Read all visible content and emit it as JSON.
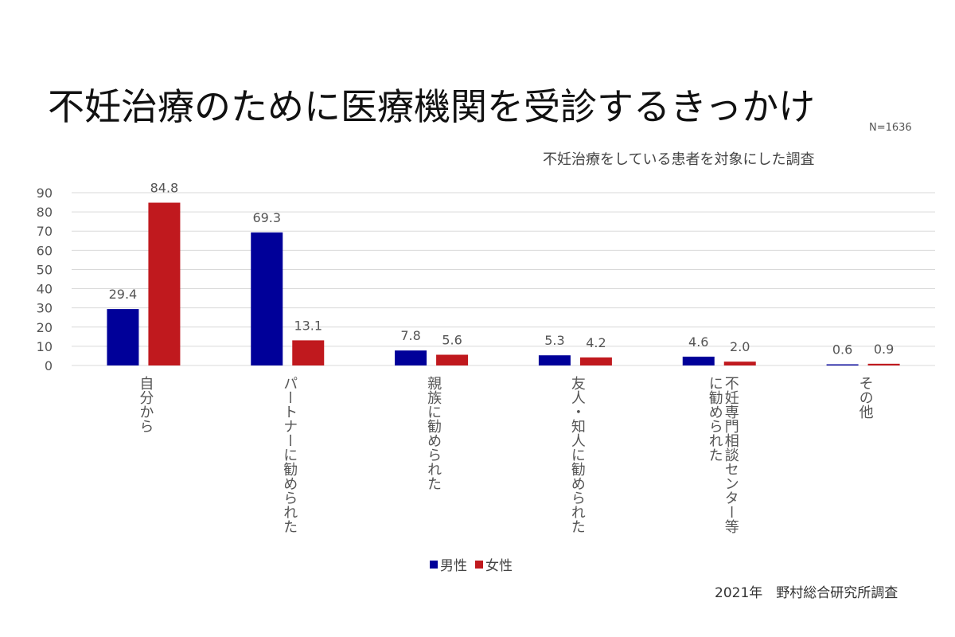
{
  "title": "不妊治療のために医療機関を受診するきっかけ",
  "sample_note": "N=1636",
  "subtitle": "不妊治療をしている患者を対象にした調査",
  "source": "2021年　野村総合研究所調査",
  "colors": {
    "male": "#000099",
    "female": "#C0191E",
    "grid": "#d9d9d9",
    "text": "#555555"
  },
  "chart_data": {
    "type": "bar",
    "categories": [
      "自分から",
      "パートナーに勧められた",
      "親族に勧められた",
      "友人・知人に勧められた",
      "不妊専門相談センター等\nに勧められた",
      "その他"
    ],
    "series": [
      {
        "name": "男性",
        "values": [
          29.4,
          69.3,
          7.8,
          5.3,
          4.6,
          0.6
        ]
      },
      {
        "name": "女性",
        "values": [
          84.8,
          13.1,
          5.6,
          4.2,
          2.0,
          0.9
        ]
      }
    ],
    "ylim": [
      0,
      90
    ],
    "yticks": [
      0,
      10,
      20,
      30,
      40,
      50,
      60,
      70,
      80,
      90
    ],
    "grid": true,
    "legend": "bottom"
  }
}
